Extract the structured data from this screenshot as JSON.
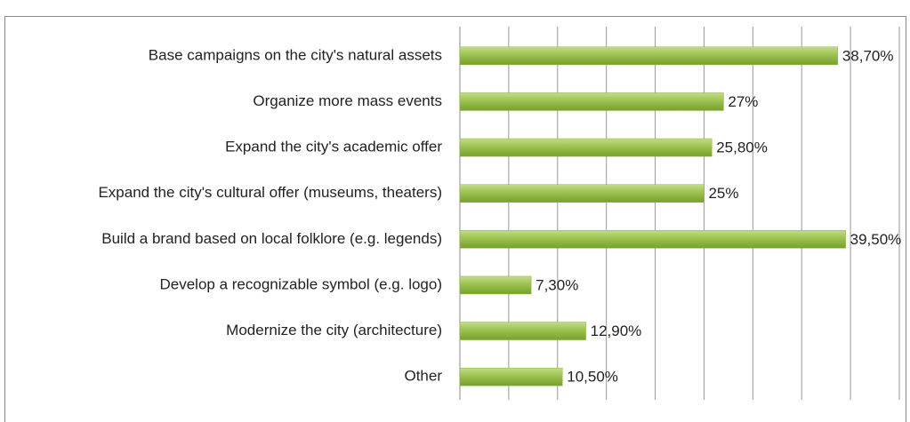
{
  "chart_data": {
    "type": "bar",
    "orientation": "horizontal",
    "categories": [
      "Base campaigns on the city's natural assets",
      "Organize more mass events",
      "Expand the city's academic offer",
      "Expand the city's cultural offer (museums, theaters)",
      "Build a brand based on local folklore (e.g. legends)",
      "Develop a recognizable symbol (e.g. logo)",
      "Modernize the city (architecture)",
      "Other"
    ],
    "values": [
      38.7,
      27,
      25.8,
      25,
      39.5,
      7.3,
      12.9,
      10.5
    ],
    "value_labels": [
      "38,70%",
      "27%",
      "25,80%",
      "25%",
      "39,50%",
      "7,30%",
      "12,90%",
      "10,50%"
    ],
    "color": "#8db43e",
    "xlim": [
      0,
      45
    ],
    "xticks": [
      0,
      5,
      10,
      15,
      20,
      25,
      30,
      35,
      40,
      45
    ],
    "grid": true
  }
}
